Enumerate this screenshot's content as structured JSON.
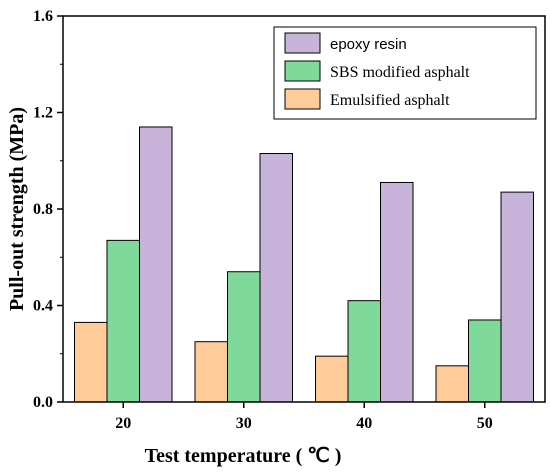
{
  "chart_data": {
    "type": "bar",
    "title": "",
    "xlabel": "Test temperature ( ℃ )",
    "ylabel": "Pull-out strength (MPa)",
    "categories": [
      "20",
      "30",
      "40",
      "50"
    ],
    "ylim": [
      0,
      1.6
    ],
    "yticks": [
      "0.0",
      "0.4",
      "0.8",
      "1.2",
      "1.6"
    ],
    "grid": false,
    "legend_position": "top-right",
    "series": [
      {
        "name": "Emulsified asphalt",
        "values": [
          0.33,
          0.25,
          0.19,
          0.15
        ],
        "color": "#FFCC99"
      },
      {
        "name": "SBS modified asphalt",
        "values": [
          0.67,
          0.54,
          0.42,
          0.34
        ],
        "color": "#7FD99A"
      },
      {
        "name": "epoxy resin",
        "values": [
          1.14,
          1.03,
          0.91,
          0.87
        ],
        "color": "#C8B4DA"
      }
    ],
    "legend_order": [
      "epoxy resin",
      "SBS modified asphalt",
      "Emulsified asphalt"
    ]
  }
}
